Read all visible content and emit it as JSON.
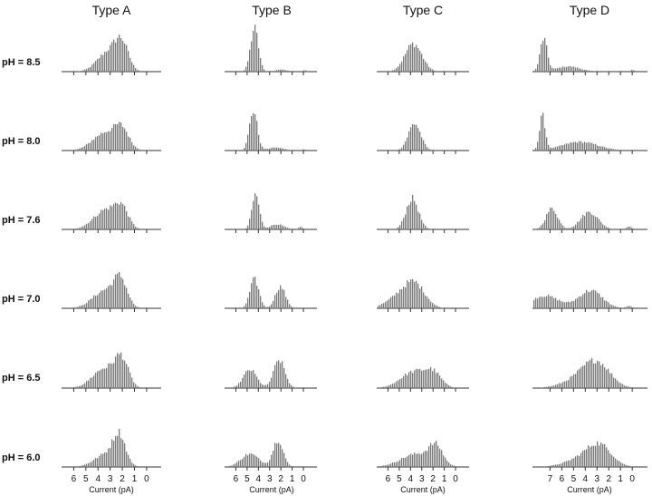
{
  "chart_data": {
    "type": "bar",
    "description_free": true,
    "columns": [
      "Type A",
      "Type B",
      "Type C",
      "Type D"
    ],
    "rows": [
      "pH = 8.5",
      "pH = 8.0",
      "pH = 7.6",
      "pH = 7.0",
      "pH = 6.5",
      "pH = 6.0"
    ],
    "xlabel": "Current (pA)",
    "bar_color": "#7a7a7a",
    "axes": [
      {
        "column": "Type A",
        "xlim": [
          7,
          -1.2
        ],
        "tick_values": [
          6,
          5,
          4,
          3,
          2,
          1,
          0
        ]
      },
      {
        "column": "Type B",
        "xlim": [
          7,
          -1.2
        ],
        "tick_values": [
          6,
          5,
          4,
          3,
          2,
          1,
          0
        ]
      },
      {
        "column": "Type C",
        "xlim": [
          7,
          -1.2
        ],
        "tick_values": [
          6,
          5,
          4,
          3,
          2,
          1,
          0
        ]
      },
      {
        "column": "Type D",
        "xlim": [
          8.5,
          -1.3
        ],
        "tick_values": [
          7,
          6,
          5,
          4,
          3,
          2,
          1,
          0
        ]
      }
    ],
    "histograms": [
      [
        {
          "peaks": [
            [
              3.2,
              0.45,
              0.9
            ],
            [
              2.1,
              0.57,
              0.55
            ]
          ]
        },
        {
          "peaks": [
            [
              4.4,
              1.0,
              0.35
            ],
            [
              2.0,
              0.05,
              0.5
            ],
            [
              -0.1,
              0.04,
              0.15
            ]
          ]
        },
        {
          "peaks": [
            [
              3.8,
              0.64,
              0.75
            ]
          ]
        },
        {
          "peaks": [
            [
              7.6,
              0.75,
              0.3
            ],
            [
              5.5,
              0.12,
              1.0
            ],
            [
              0.0,
              0.04,
              0.2
            ]
          ]
        }
      ],
      [
        {
          "peaks": [
            [
              3.5,
              0.4,
              1.0
            ],
            [
              2.1,
              0.44,
              0.6
            ]
          ]
        },
        {
          "peaks": [
            [
              4.5,
              0.92,
              0.35
            ],
            [
              2.5,
              0.07,
              0.7
            ],
            [
              0.0,
              0.03,
              0.2
            ]
          ]
        },
        {
          "peaks": [
            [
              3.7,
              0.62,
              0.55
            ]
          ]
        },
        {
          "peaks": [
            [
              7.7,
              0.77,
              0.25
            ],
            [
              4.5,
              0.2,
              1.5
            ]
          ]
        }
      ],
      [
        {
          "peaks": [
            [
              3.4,
              0.45,
              1.0
            ],
            [
              2.1,
              0.41,
              0.55
            ]
          ]
        },
        {
          "peaks": [
            [
              4.3,
              0.8,
              0.33
            ],
            [
              2.4,
              0.12,
              0.6
            ],
            [
              0.3,
              0.06,
              0.2
            ]
          ]
        },
        {
          "peaks": [
            [
              3.9,
              0.71,
              0.55
            ]
          ]
        },
        {
          "peaks": [
            [
              6.9,
              0.48,
              0.5
            ],
            [
              3.7,
              0.4,
              0.75
            ],
            [
              0.3,
              0.07,
              0.25
            ]
          ]
        }
      ],
      [
        {
          "peaks": [
            [
              3.5,
              0.4,
              1.0
            ],
            [
              2.2,
              0.58,
              0.55
            ]
          ]
        },
        {
          "peaks": [
            [
              4.4,
              0.66,
              0.4
            ],
            [
              2.1,
              0.5,
              0.45
            ]
          ]
        },
        {
          "peaks": [
            [
              4.8,
              0.3,
              1.2
            ],
            [
              3.6,
              0.42,
              0.9
            ]
          ]
        },
        {
          "peaks": [
            [
              7.5,
              0.29,
              1.2
            ],
            [
              3.6,
              0.41,
              1.0
            ],
            [
              0.3,
              0.05,
              0.25
            ]
          ]
        }
      ],
      [
        {
          "peaks": [
            [
              3.5,
              0.45,
              1.0
            ],
            [
              2.1,
              0.6,
              0.55
            ]
          ]
        },
        {
          "peaks": [
            [
              4.8,
              0.42,
              0.6
            ],
            [
              2.2,
              0.64,
              0.5
            ]
          ]
        },
        {
          "peaks": [
            [
              3.7,
              0.38,
              1.2
            ],
            [
              2.0,
              0.28,
              0.7
            ]
          ]
        },
        {
          "peaks": [
            [
              4.2,
              0.25,
              1.5
            ],
            [
              3.0,
              0.45,
              1.1
            ]
          ]
        }
      ],
      [
        {
          "peaks": [
            [
              3.3,
              0.3,
              1.0
            ],
            [
              2.3,
              0.62,
              0.5
            ]
          ]
        },
        {
          "peaks": [
            [
              4.8,
              0.3,
              0.8
            ],
            [
              2.3,
              0.63,
              0.45
            ]
          ]
        },
        {
          "peaks": [
            [
              3.5,
              0.3,
              1.4
            ],
            [
              1.8,
              0.4,
              0.6
            ]
          ]
        },
        {
          "peaks": [
            [
              4.0,
              0.22,
              1.5
            ],
            [
              2.8,
              0.38,
              1.0
            ]
          ]
        }
      ]
    ]
  }
}
